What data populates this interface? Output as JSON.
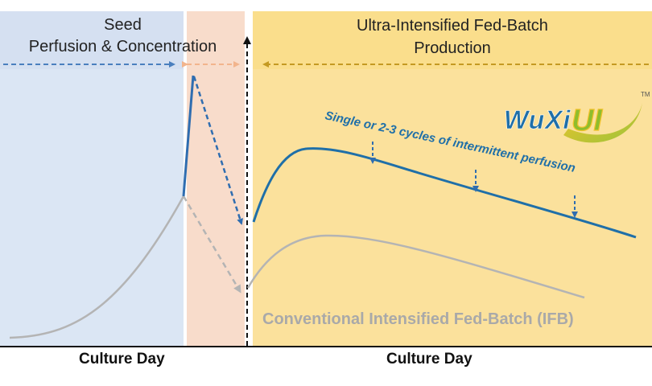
{
  "phases": {
    "seed": {
      "line1": "Seed",
      "line2": "Perfusion & Concentration",
      "color": "#dbe6f4",
      "header_color": "#d3dff0"
    },
    "transfer": {
      "color": "#f8dccb"
    },
    "production": {
      "line1": "Ultra-Intensified Fed-Batch",
      "line2": "Production",
      "color": "#fbe19c",
      "header_color": "#fadf8f"
    }
  },
  "logo": {
    "text": "WuXiUI",
    "tm": "TM",
    "colors": {
      "wuxi": "#1f6fa8",
      "ui_green": "#9ac43b",
      "ui_yellow": "#f2c22a"
    }
  },
  "annotations": {
    "ui_curve": "Single or 2-3 cycles of intermittent perfusion",
    "ifb_curve": "Conventional Intensified Fed-Batch (IFB)"
  },
  "axes": {
    "left_xlabel": "Culture Day",
    "right_xlabel": "Culture Day"
  },
  "colors": {
    "ui_line": "#1f6fa8",
    "ifb_line": "#b4b4b4",
    "seed_arrow": "#4a7fbe",
    "transfer_arrow": "#f2b48c",
    "production_arrow": "#c49a22",
    "axis": "#111111"
  }
}
